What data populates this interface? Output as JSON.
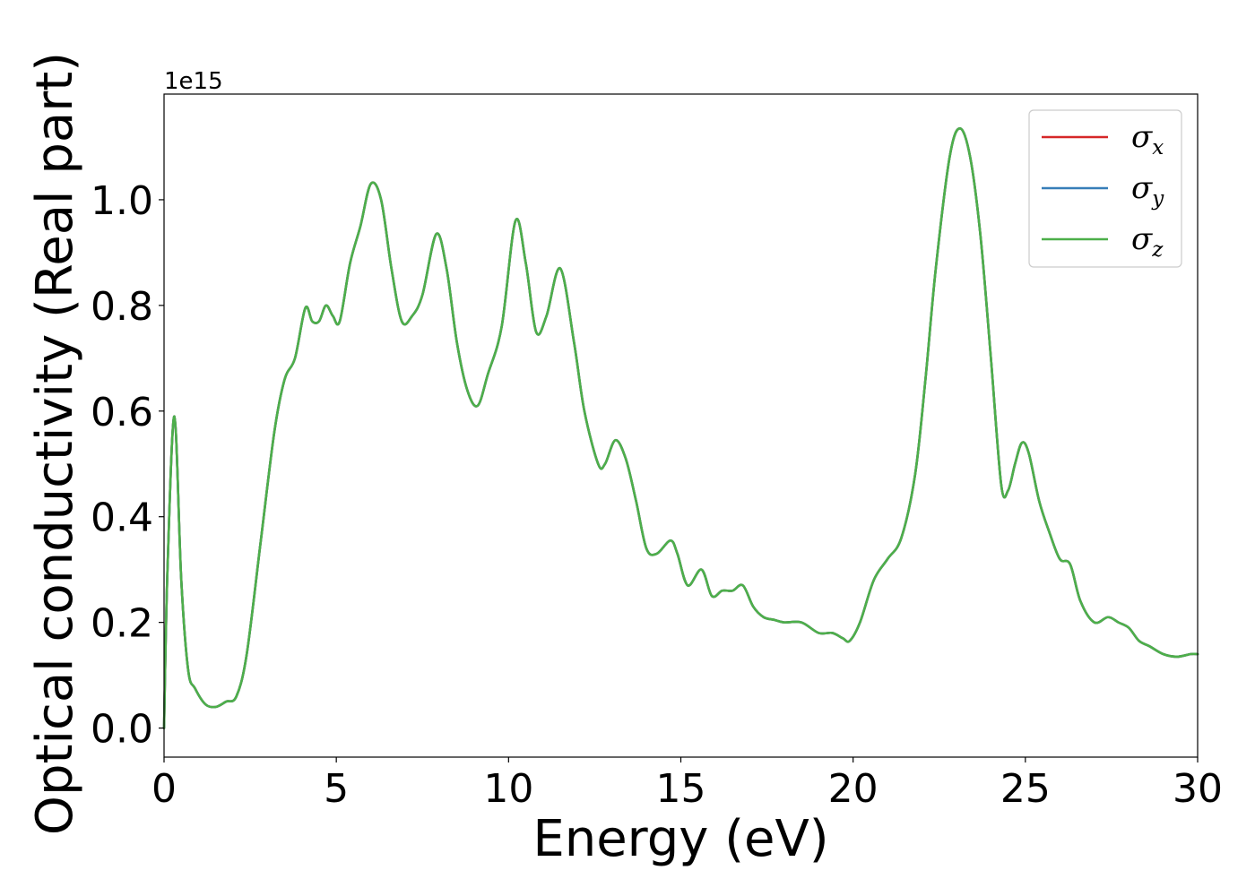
{
  "chart_data": {
    "type": "line",
    "xlabel": "Energy (eV)",
    "ylabel": "Optical conductivity (Real part)",
    "y_offset_text": "1e15",
    "y_scale": 1000000000000000.0,
    "xlim": [
      0,
      30
    ],
    "ylim": [
      -0.055,
      1.2
    ],
    "x_ticks": [
      0,
      5,
      10,
      15,
      20,
      25,
      30
    ],
    "x_tick_labels": [
      "0",
      "5",
      "10",
      "15",
      "20",
      "25",
      "30"
    ],
    "y_ticks": [
      0.0,
      0.2,
      0.4,
      0.6,
      0.8,
      1.0
    ],
    "y_tick_labels": [
      "0.0",
      "0.2",
      "0.4",
      "0.6",
      "0.8",
      "1.0"
    ],
    "grid": false,
    "legend_position": "top-right",
    "x": [
      0,
      0.1,
      0.3,
      0.5,
      0.7,
      0.9,
      1.2,
      1.5,
      1.8,
      2.1,
      2.4,
      2.8,
      3.2,
      3.5,
      3.8,
      4.1,
      4.3,
      4.5,
      4.7,
      4.9,
      5.1,
      5.4,
      5.7,
      6.0,
      6.3,
      6.6,
      6.9,
      7.2,
      7.5,
      7.9,
      8.2,
      8.5,
      8.8,
      9.1,
      9.4,
      9.8,
      10.2,
      10.5,
      10.8,
      11.1,
      11.5,
      11.9,
      12.2,
      12.6,
      12.8,
      13.1,
      13.4,
      13.7,
      14.0,
      14.3,
      14.7,
      14.9,
      15.2,
      15.6,
      15.9,
      16.2,
      16.5,
      16.8,
      17.1,
      17.4,
      17.7,
      18.0,
      18.5,
      19.0,
      19.4,
      19.7,
      19.9,
      20.2,
      20.6,
      21.0,
      21.4,
      21.8,
      22.1,
      22.4,
      22.8,
      23.1,
      23.4,
      23.7,
      24.0,
      24.3,
      24.5,
      24.7,
      24.9,
      25.1,
      25.4,
      25.7,
      26.0,
      26.3,
      26.6,
      27.0,
      27.4,
      27.7,
      28.0,
      28.3,
      28.6,
      29.0,
      29.4,
      29.8,
      30.0
    ],
    "series": [
      {
        "name": "σx",
        "symbol": "σ",
        "subscript": "x",
        "color": "#d62728",
        "values": [
          0.0,
          0.3,
          0.59,
          0.28,
          0.11,
          0.075,
          0.045,
          0.04,
          0.05,
          0.06,
          0.14,
          0.35,
          0.56,
          0.66,
          0.7,
          0.795,
          0.77,
          0.77,
          0.8,
          0.78,
          0.77,
          0.88,
          0.95,
          1.03,
          1.0,
          0.87,
          0.77,
          0.78,
          0.82,
          0.935,
          0.87,
          0.73,
          0.64,
          0.61,
          0.67,
          0.76,
          0.96,
          0.88,
          0.75,
          0.78,
          0.87,
          0.73,
          0.6,
          0.5,
          0.5,
          0.545,
          0.51,
          0.43,
          0.34,
          0.33,
          0.355,
          0.33,
          0.27,
          0.3,
          0.25,
          0.26,
          0.26,
          0.27,
          0.23,
          0.21,
          0.205,
          0.2,
          0.2,
          0.18,
          0.18,
          0.17,
          0.165,
          0.2,
          0.28,
          0.32,
          0.36,
          0.48,
          0.66,
          0.87,
          1.08,
          1.135,
          1.08,
          0.93,
          0.7,
          0.46,
          0.45,
          0.5,
          0.54,
          0.52,
          0.43,
          0.37,
          0.32,
          0.31,
          0.24,
          0.2,
          0.21,
          0.2,
          0.19,
          0.165,
          0.155,
          0.14,
          0.135,
          0.14,
          0.14
        ]
      },
      {
        "name": "σy",
        "symbol": "σ",
        "subscript": "y",
        "color": "#377eb8",
        "values": [
          0.0,
          0.3,
          0.59,
          0.28,
          0.11,
          0.075,
          0.045,
          0.04,
          0.05,
          0.06,
          0.14,
          0.35,
          0.56,
          0.66,
          0.7,
          0.795,
          0.77,
          0.77,
          0.8,
          0.78,
          0.77,
          0.88,
          0.95,
          1.03,
          1.0,
          0.87,
          0.77,
          0.78,
          0.82,
          0.935,
          0.87,
          0.73,
          0.64,
          0.61,
          0.67,
          0.76,
          0.96,
          0.88,
          0.75,
          0.78,
          0.87,
          0.73,
          0.6,
          0.5,
          0.5,
          0.545,
          0.51,
          0.43,
          0.34,
          0.33,
          0.355,
          0.33,
          0.27,
          0.3,
          0.25,
          0.26,
          0.26,
          0.27,
          0.23,
          0.21,
          0.205,
          0.2,
          0.2,
          0.18,
          0.18,
          0.17,
          0.165,
          0.2,
          0.28,
          0.32,
          0.36,
          0.48,
          0.66,
          0.87,
          1.08,
          1.135,
          1.08,
          0.93,
          0.7,
          0.46,
          0.45,
          0.5,
          0.54,
          0.52,
          0.43,
          0.37,
          0.32,
          0.31,
          0.24,
          0.2,
          0.21,
          0.2,
          0.19,
          0.165,
          0.155,
          0.14,
          0.135,
          0.14,
          0.14
        ]
      },
      {
        "name": "σz",
        "symbol": "σ",
        "subscript": "z",
        "color": "#4daf4a",
        "values": [
          0.0,
          0.3,
          0.59,
          0.28,
          0.11,
          0.075,
          0.045,
          0.04,
          0.05,
          0.06,
          0.14,
          0.35,
          0.56,
          0.66,
          0.7,
          0.795,
          0.77,
          0.77,
          0.8,
          0.78,
          0.77,
          0.88,
          0.95,
          1.03,
          1.0,
          0.87,
          0.77,
          0.78,
          0.82,
          0.935,
          0.87,
          0.73,
          0.64,
          0.61,
          0.67,
          0.76,
          0.96,
          0.88,
          0.75,
          0.78,
          0.87,
          0.73,
          0.6,
          0.5,
          0.5,
          0.545,
          0.51,
          0.43,
          0.34,
          0.33,
          0.355,
          0.33,
          0.27,
          0.3,
          0.25,
          0.26,
          0.26,
          0.27,
          0.23,
          0.21,
          0.205,
          0.2,
          0.2,
          0.18,
          0.18,
          0.17,
          0.165,
          0.2,
          0.28,
          0.32,
          0.36,
          0.48,
          0.66,
          0.87,
          1.08,
          1.135,
          1.08,
          0.93,
          0.7,
          0.46,
          0.45,
          0.5,
          0.54,
          0.52,
          0.43,
          0.37,
          0.32,
          0.31,
          0.24,
          0.2,
          0.21,
          0.2,
          0.19,
          0.165,
          0.155,
          0.14,
          0.135,
          0.14,
          0.14
        ]
      }
    ]
  }
}
